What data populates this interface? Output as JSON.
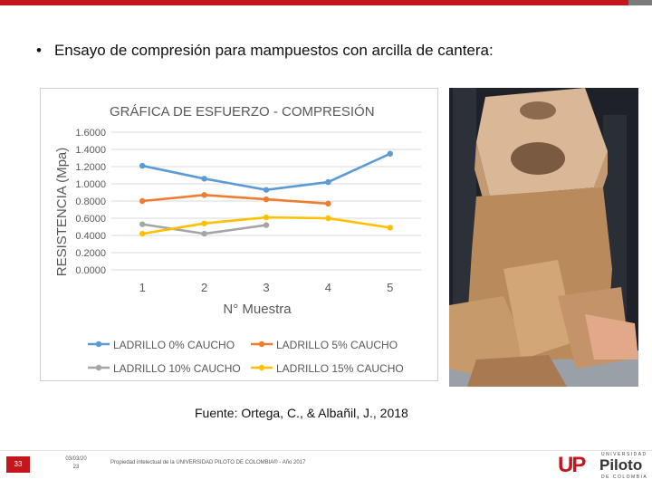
{
  "slide": {
    "bullet": "•",
    "heading": "Ensayo de compresión para mampuestos con arcilla de cantera:",
    "source": "Fuente: Ortega, C., & Albañil, J., 2018"
  },
  "footer": {
    "slide_number": "33",
    "date_line1": "03/03/20",
    "date_line2": "23",
    "copyright": "Propiedad intelectual de la UNIVERSIDAD PILOTO DE COLOMBIA® - Año 2017",
    "logo_mark": "UP",
    "logo_top": "UNIVERSIDAD",
    "logo_name": "Piloto",
    "logo_bottom": "DE COLOMBIA"
  },
  "colors": {
    "accent": "#c4161c",
    "series_0": "#5b9bd5",
    "series_5": "#ed7d31",
    "series_10": "#a5a5a5",
    "series_15": "#ffc000"
  },
  "chart_data": {
    "type": "line",
    "title": "GRÁFICA DE ESFUERZO - COMPRESIÓN",
    "xlabel": "N° Muestra",
    "ylabel": "RESISTENCIA (Mpa)",
    "categories": [
      "1",
      "2",
      "3",
      "4",
      "5"
    ],
    "ylim": [
      0,
      1.6
    ],
    "yticks": [
      "0.0000",
      "0.2000",
      "0.4000",
      "0.6000",
      "0.8000",
      "1.0000",
      "1.2000",
      "1.4000",
      "1.6000"
    ],
    "grid": true,
    "legend_position": "bottom",
    "series": [
      {
        "name": "LADRILLO 0% CAUCHO",
        "values": [
          1.21,
          1.06,
          0.93,
          1.02,
          1.35
        ]
      },
      {
        "name": "LADRILLO 5% CAUCHO",
        "values": [
          0.8,
          0.87,
          0.82,
          0.77,
          null
        ]
      },
      {
        "name": "LADRILLO 10% CAUCHO",
        "values": [
          0.53,
          0.42,
          0.52,
          null,
          null
        ]
      },
      {
        "name": "LADRILLO 15% CAUCHO",
        "values": [
          0.42,
          0.54,
          0.61,
          0.6,
          0.49
        ]
      }
    ]
  }
}
